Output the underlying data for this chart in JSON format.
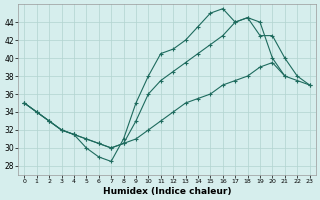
{
  "xlabel": "Humidex (Indice chaleur)",
  "bg_color": "#d6eeed",
  "grid_color": "#b2d4d0",
  "line_color": "#1e6b5e",
  "xlim": [
    -0.5,
    23.5
  ],
  "ylim": [
    27,
    46
  ],
  "yticks": [
    28,
    30,
    32,
    34,
    36,
    38,
    40,
    42,
    44
  ],
  "xticks": [
    0,
    1,
    2,
    3,
    4,
    5,
    6,
    7,
    8,
    9,
    10,
    11,
    12,
    13,
    14,
    15,
    16,
    17,
    18,
    19,
    20,
    21,
    22,
    23
  ],
  "series1_x": [
    0,
    1,
    2,
    3,
    4,
    5,
    6,
    7,
    8,
    9,
    10,
    11,
    12,
    13,
    14,
    15,
    16,
    17,
    18,
    19,
    20,
    21
  ],
  "series1_y": [
    35,
    34,
    33,
    32,
    31.5,
    30,
    29,
    28.5,
    31,
    35,
    38,
    40.5,
    41,
    42,
    43.5,
    45,
    45.5,
    44,
    44.5,
    44,
    40,
    38
  ],
  "series2_x": [
    0,
    1,
    2,
    3,
    4,
    5,
    6,
    7,
    8,
    9,
    10,
    11,
    12,
    13,
    14,
    15,
    16,
    17,
    18,
    19,
    20,
    21,
    22,
    23
  ],
  "series2_y": [
    35,
    34,
    33,
    32,
    31.5,
    31,
    30.5,
    30,
    30.5,
    33,
    36,
    37.5,
    38.5,
    39.5,
    40.5,
    41.5,
    42.5,
    44,
    44.5,
    42.5,
    42.5,
    40,
    38,
    37
  ],
  "series3_x": [
    0,
    1,
    2,
    3,
    4,
    5,
    6,
    7,
    8,
    9,
    10,
    11,
    12,
    13,
    14,
    15,
    16,
    17,
    18,
    19,
    20,
    21,
    22,
    23
  ],
  "series3_y": [
    35,
    34,
    33,
    32,
    31.5,
    31,
    30.5,
    30,
    30.5,
    31,
    32,
    33,
    34,
    35,
    35.5,
    36,
    37,
    37.5,
    38,
    39,
    39.5,
    38,
    37.5,
    37
  ]
}
